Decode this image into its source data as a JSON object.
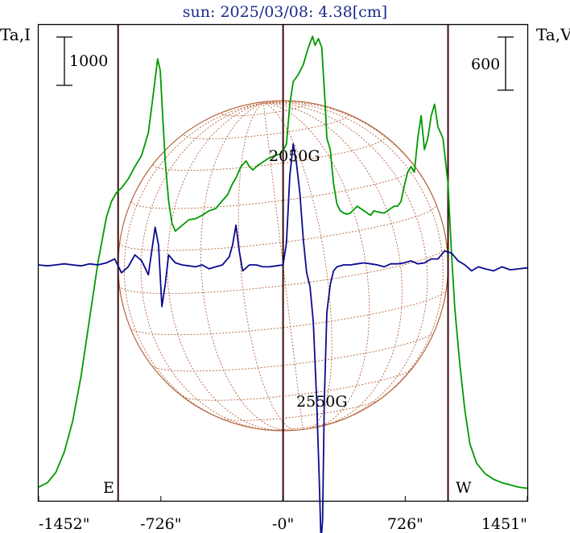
{
  "chart_data": {
    "type": "line",
    "title": "sun: 2025/03/08: 4.38[cm]",
    "ylabel_left": "Ta,I",
    "ylabel_right": "Ta,V",
    "scale_left": "1000",
    "scale_right": "600",
    "limb_east_label": "E",
    "limb_west_label": "W",
    "xlim": [
      -1452,
      1451
    ],
    "ylim_left": [
      0,
      4200
    ],
    "ylim_right": [
      -1200,
      1200
    ],
    "x_ticks": [
      {
        "value": -1452,
        "label": "-1452\""
      },
      {
        "value": -726,
        "label": "-726\""
      },
      {
        "value": 0,
        "label": "-0\""
      },
      {
        "value": 726,
        "label": "726\""
      },
      {
        "value": 1451,
        "label": "1451\""
      }
    ],
    "limb_x": [
      -980,
      980
    ],
    "colors": {
      "intensity": "#009a00",
      "polarization": "#0a0a90",
      "disk": "#b5623a",
      "vlines": "#3a0a0a",
      "title": "#1a2a8a"
    },
    "annotations": [
      {
        "text": "2050G",
        "x": 75,
        "series": "Ta,I"
      },
      {
        "text": "2550G",
        "x": 230,
        "series": "Ta,V"
      }
    ],
    "series": [
      {
        "axis": "left",
        "color": "#009a00",
        "x": [
          -1452,
          -1400,
          -1350,
          -1300,
          -1250,
          -1200,
          -1150,
          -1100,
          -1050,
          -1020,
          -990,
          -960,
          -920,
          -880,
          -840,
          -800,
          -770,
          -745,
          -730,
          -715,
          -700,
          -680,
          -660,
          -640,
          -600,
          -560,
          -520,
          -480,
          -440,
          -400,
          -360,
          -330,
          -300,
          -280,
          -250,
          -220,
          -200,
          -180,
          -150,
          -120,
          -90,
          -60,
          -40,
          -20,
          0,
          20,
          40,
          60,
          90,
          120,
          150,
          175,
          190,
          210,
          230,
          250,
          260,
          280,
          300,
          320,
          340,
          360,
          380,
          400,
          440,
          480,
          520,
          540,
          560,
          600,
          640,
          660,
          680,
          700,
          720,
          740,
          760,
          780,
          800,
          820,
          840,
          860,
          880,
          900,
          920,
          950,
          980,
          1000,
          1020,
          1050,
          1080,
          1110,
          1150,
          1200,
          1250,
          1300,
          1350,
          1400,
          1451
        ],
        "y": [
          120,
          160,
          250,
          430,
          700,
          1100,
          1600,
          2100,
          2500,
          2640,
          2720,
          2760,
          2840,
          2950,
          3050,
          3250,
          3600,
          3900,
          3800,
          3400,
          3000,
          2650,
          2450,
          2380,
          2430,
          2480,
          2490,
          2520,
          2560,
          2580,
          2650,
          2700,
          2800,
          2850,
          2950,
          3000,
          2950,
          2920,
          2960,
          2990,
          3020,
          3040,
          3050,
          3060,
          3090,
          3150,
          3500,
          3700,
          3760,
          3850,
          4000,
          4100,
          4020,
          4080,
          4000,
          3500,
          3200,
          3100,
          2800,
          2620,
          2560,
          2540,
          2530,
          2540,
          2600,
          2560,
          2520,
          2560,
          2550,
          2540,
          2580,
          2600,
          2600,
          2640,
          2780,
          2900,
          2950,
          2900,
          3200,
          3400,
          3100,
          3200,
          3400,
          3500,
          3300,
          3200,
          2800,
          2200,
          1700,
          1200,
          800,
          500,
          330,
          240,
          190,
          160,
          140,
          120,
          110
        ]
      },
      {
        "axis": "right",
        "color": "#0a0a90",
        "x": [
          -1452,
          -1400,
          -1350,
          -1300,
          -1250,
          -1200,
          -1150,
          -1100,
          -1050,
          -1000,
          -960,
          -920,
          -880,
          -840,
          -800,
          -780,
          -760,
          -740,
          -720,
          -700,
          -680,
          -660,
          -640,
          -600,
          -560,
          -520,
          -480,
          -440,
          -400,
          -360,
          -320,
          -300,
          -280,
          -260,
          -240,
          -200,
          -160,
          -120,
          -80,
          -40,
          0,
          20,
          40,
          60,
          80,
          100,
          120,
          140,
          160,
          180,
          200,
          215,
          225,
          235,
          245,
          260,
          280,
          300,
          320,
          360,
          400,
          440,
          480,
          520,
          560,
          600,
          640,
          680,
          720,
          760,
          800,
          840,
          880,
          920,
          960,
          1000,
          1040,
          1080,
          1120,
          1160,
          1200,
          1250,
          1300,
          1350,
          1400,
          1451
        ],
        "y": [
          -10,
          -15,
          -10,
          -5,
          -10,
          -15,
          -5,
          -10,
          0,
          20,
          -50,
          -20,
          40,
          10,
          -60,
          60,
          180,
          90,
          -220,
          -110,
          40,
          20,
          0,
          -10,
          -15,
          -20,
          -10,
          -30,
          -20,
          -10,
          30,
          90,
          190,
          60,
          -40,
          -10,
          -10,
          -20,
          -20,
          -15,
          -10,
          100,
          440,
          600,
          500,
          350,
          120,
          -50,
          -120,
          -300,
          -700,
          -1100,
          -1400,
          -1300,
          -700,
          -250,
          -110,
          -40,
          -20,
          -10,
          -10,
          -5,
          0,
          -5,
          -10,
          -20,
          -5,
          -5,
          0,
          10,
          -5,
          0,
          20,
          20,
          60,
          50,
          10,
          -10,
          -40,
          -20,
          -30,
          -40,
          -20,
          -35,
          -30,
          -25
        ]
      }
    ]
  }
}
